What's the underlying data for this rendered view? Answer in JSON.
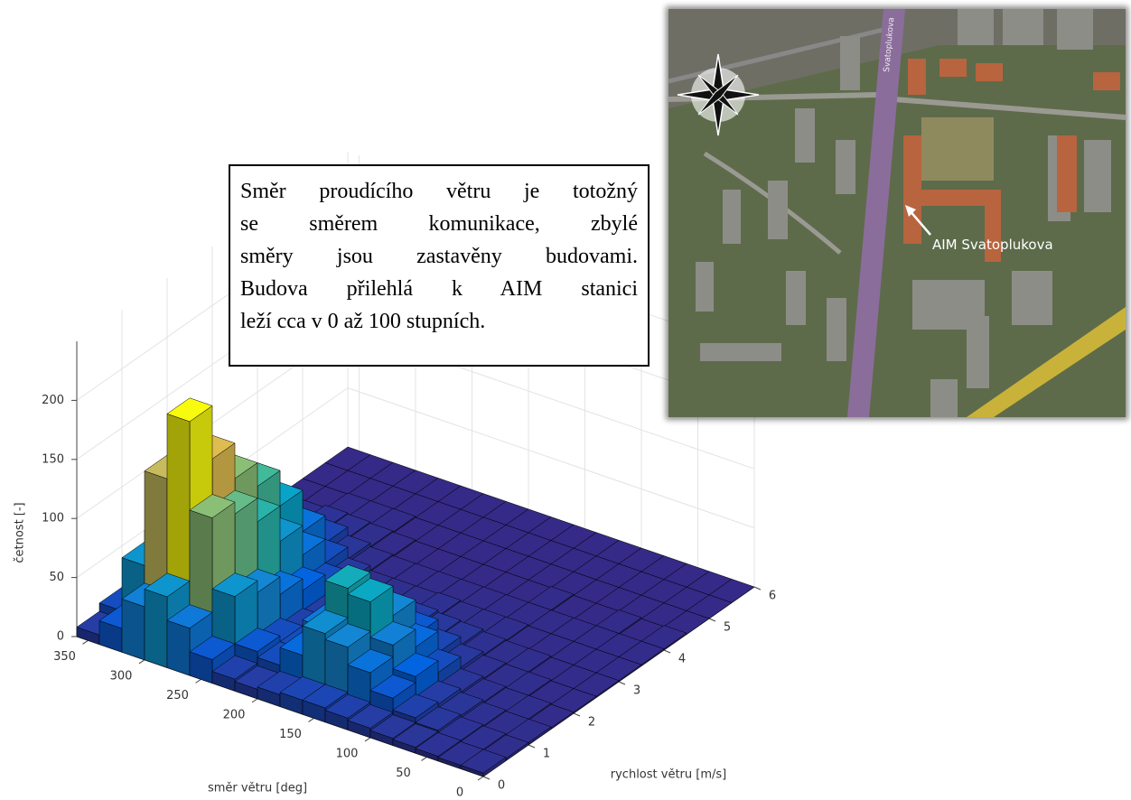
{
  "chart_data": {
    "type": "bar3d",
    "xlabel": "směr větru [deg]",
    "ylabel": "rychlost větru [m/s]",
    "zlabel": "četnost [-]",
    "x_bins": [
      0,
      20,
      40,
      60,
      80,
      100,
      120,
      140,
      160,
      180,
      200,
      220,
      240,
      260,
      280,
      300,
      320,
      340,
      360
    ],
    "y_bins": [
      0,
      0.5,
      1,
      1.5,
      2,
      2.5,
      3,
      3.5,
      4,
      4.5,
      5,
      5.5,
      6
    ],
    "values": [
      [
        3,
        2,
        2,
        1,
        1,
        1,
        1,
        1,
        1,
        0,
        0,
        0
      ],
      [
        3,
        3,
        2,
        2,
        1,
        1,
        1,
        1,
        0,
        0,
        0,
        0
      ],
      [
        4,
        4,
        3,
        2,
        2,
        1,
        1,
        1,
        1,
        0,
        0,
        0
      ],
      [
        5,
        6,
        5,
        3,
        2,
        2,
        1,
        1,
        0,
        0,
        0,
        0
      ],
      [
        6,
        10,
        8,
        5,
        3,
        2,
        1,
        1,
        0,
        0,
        0,
        0
      ],
      [
        8,
        20,
        25,
        15,
        6,
        3,
        2,
        1,
        1,
        0,
        0,
        0
      ],
      [
        10,
        35,
        45,
        30,
        12,
        5,
        2,
        1,
        0,
        0,
        0,
        0
      ],
      [
        12,
        50,
        75,
        50,
        20,
        6,
        2,
        1,
        0,
        0,
        0,
        0
      ],
      [
        12,
        55,
        80,
        55,
        25,
        8,
        3,
        1,
        0,
        0,
        0,
        0
      ],
      [
        10,
        30,
        40,
        30,
        15,
        6,
        2,
        1,
        0,
        0,
        0,
        0
      ],
      [
        8,
        15,
        15,
        12,
        8,
        4,
        2,
        1,
        0,
        0,
        0,
        0
      ],
      [
        10,
        20,
        15,
        10,
        8,
        5,
        2,
        1,
        0,
        0,
        0,
        0
      ],
      [
        20,
        60,
        50,
        35,
        25,
        15,
        6,
        2,
        1,
        0,
        0,
        0
      ],
      [
        40,
        120,
        110,
        90,
        60,
        35,
        15,
        5,
        2,
        1,
        0,
        0
      ],
      [
        60,
        195,
        150,
        120,
        100,
        70,
        35,
        12,
        3,
        1,
        0,
        0
      ],
      [
        45,
        140,
        130,
        110,
        95,
        80,
        40,
        15,
        4,
        1,
        0,
        0
      ],
      [
        20,
        60,
        70,
        60,
        50,
        40,
        20,
        8,
        2,
        0,
        0,
        0
      ],
      [
        8,
        15,
        15,
        12,
        8,
        6,
        3,
        1,
        0,
        0,
        0,
        0
      ]
    ],
    "xlim": [
      0,
      360
    ],
    "ylim": [
      0,
      6
    ],
    "zlim": [
      0,
      250
    ],
    "xticks": [
      0,
      50,
      100,
      150,
      200,
      250,
      300,
      350
    ],
    "yticks": [
      0,
      1,
      2,
      3,
      4,
      5,
      6
    ],
    "zticks": [
      0,
      50,
      100,
      150,
      200
    ],
    "grid": true,
    "colormap": [
      "#352a87",
      "#0363e1",
      "#1485d4",
      "#06a7c6",
      "#38b99e",
      "#92bf73",
      "#d9ba56",
      "#fcce2e",
      "#f9fb0e"
    ],
    "annotation": [
      "Směr proudícího větru je totožný",
      "se směrem komunikace, zbylé",
      "směry jsou zastavěny budovami.",
      "Budova přilehlá k AIM stanici",
      "leží cca v 0 až 100 stupních."
    ]
  },
  "map": {
    "label": "AIM Svatoplukova",
    "street": "Svatoplukova"
  }
}
